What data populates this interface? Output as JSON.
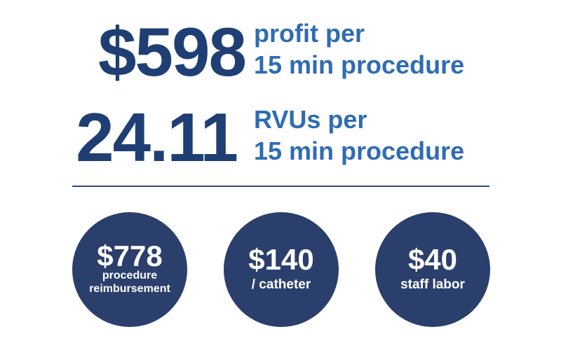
{
  "stats": [
    {
      "value": "$598",
      "lines": [
        "profit per",
        "15 min procedure"
      ]
    },
    {
      "value": "24.11",
      "lines": [
        "RVUs per",
        "15 min procedure"
      ]
    }
  ],
  "circles": [
    {
      "value": "$778",
      "lines": [
        "procedure",
        "reimbursement"
      ]
    },
    {
      "value": "$140",
      "lines": [
        "/ catheter"
      ]
    },
    {
      "value": "$40",
      "lines": [
        "staff labor"
      ]
    }
  ]
}
